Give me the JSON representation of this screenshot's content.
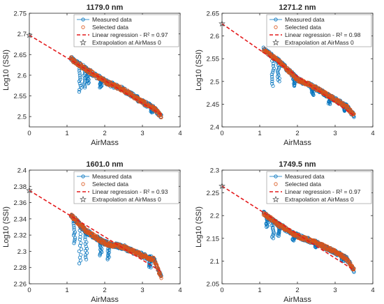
{
  "colors": {
    "measured": "#0072BD",
    "selected": "#D95319",
    "regression": "#E41A1C",
    "extrapolation": "#555555",
    "axis": "#262626"
  },
  "chart_data": [
    {
      "type": "scatter",
      "title": "1179.0 nm",
      "xlabel": "AirMass",
      "ylabel": "Log10 (SSI)",
      "xlim": [
        0,
        4
      ],
      "ylim": [
        2.475,
        2.75
      ],
      "xticks": [
        "0",
        "1",
        "2",
        "3",
        "4"
      ],
      "yticks": [
        "2.5",
        "2.55",
        "2.6",
        "2.65",
        "2.7",
        "2.75"
      ],
      "ytick_values": [
        2.5,
        2.55,
        2.6,
        2.65,
        2.7,
        2.75
      ],
      "legend": [
        {
          "label": "Measured data",
          "marker": "circle"
        },
        {
          "label": "Selected data",
          "marker": "circle"
        },
        {
          "label": "Linear regression - R² = 0.97",
          "marker": "dashed-line"
        },
        {
          "label": "Extrapolation at AirMass 0",
          "marker": "star"
        }
      ],
      "legend_position": "top-right",
      "regression": {
        "x": [
          0,
          3.5
        ],
        "y": [
          2.697,
          2.505
        ]
      },
      "extrapolation": {
        "x": 0,
        "y": 2.697
      },
      "trend": [
        [
          1.1,
          2.64
        ],
        [
          1.5,
          2.615
        ],
        [
          2.0,
          2.585
        ],
        [
          2.5,
          2.565
        ],
        [
          3.0,
          2.535
        ],
        [
          3.3,
          2.52
        ],
        [
          3.5,
          2.5
        ]
      ],
      "dips": [
        [
          1.35,
          2.56
        ],
        [
          1.47,
          2.57
        ],
        [
          1.55,
          2.58
        ],
        [
          1.9,
          2.57
        ],
        [
          2.85,
          2.55
        ],
        [
          3.25,
          2.51
        ]
      ],
      "spread": 0.012
    },
    {
      "type": "scatter",
      "title": "1271.2 nm",
      "xlabel": "AirMass",
      "ylabel": "Log10 (SSI)",
      "xlim": [
        0,
        4
      ],
      "ylim": [
        2.4,
        2.65
      ],
      "xticks": [
        "0",
        "1",
        "2",
        "3",
        "4"
      ],
      "yticks": [
        "2.4",
        "2.45",
        "2.5",
        "2.55",
        "2.6",
        "2.65"
      ],
      "ytick_values": [
        2.4,
        2.45,
        2.5,
        2.55,
        2.6,
        2.65
      ],
      "legend": [
        {
          "label": "Measured data",
          "marker": "circle"
        },
        {
          "label": "Selected data",
          "marker": "circle"
        },
        {
          "label": "Linear regression - R² = 0.98",
          "marker": "dashed-line"
        },
        {
          "label": "Extrapolation at AirMass 0",
          "marker": "star"
        }
      ],
      "legend_position": "top-right",
      "regression": {
        "x": [
          0,
          3.5
        ],
        "y": [
          2.627,
          2.425
        ]
      },
      "extrapolation": {
        "x": 0,
        "y": 2.627
      },
      "trend": [
        [
          1.1,
          2.57
        ],
        [
          1.5,
          2.545
        ],
        [
          2.0,
          2.505
        ],
        [
          2.5,
          2.485
        ],
        [
          3.0,
          2.46
        ],
        [
          3.3,
          2.445
        ],
        [
          3.5,
          2.425
        ]
      ],
      "dips": [
        [
          1.35,
          2.49
        ],
        [
          1.5,
          2.5
        ],
        [
          1.9,
          2.49
        ],
        [
          2.4,
          2.47
        ],
        [
          2.85,
          2.45
        ],
        [
          3.25,
          2.435
        ]
      ],
      "spread": 0.01
    },
    {
      "type": "scatter",
      "title": "1601.0 nm",
      "xlabel": "AirMass",
      "ylabel": "Log10 (SSI)",
      "xlim": [
        0,
        4
      ],
      "ylim": [
        2.26,
        2.4
      ],
      "xticks": [
        "0",
        "1",
        "2",
        "3",
        "4"
      ],
      "yticks": [
        "2.26",
        "2.28",
        "2.3",
        "2.32",
        "2.34",
        "2.36",
        "2.38",
        "2.4"
      ],
      "ytick_values": [
        2.26,
        2.28,
        2.3,
        2.32,
        2.34,
        2.36,
        2.38,
        2.4
      ],
      "legend": [
        {
          "label": "Measured data",
          "marker": "circle"
        },
        {
          "label": "Selected data",
          "marker": "circle"
        },
        {
          "label": "Linear regression - R² = 0.93",
          "marker": "dashed-line"
        },
        {
          "label": "Extrapolation at AirMass 0",
          "marker": "star"
        }
      ],
      "legend_position": "top-right",
      "regression": {
        "x": [
          0,
          3.5
        ],
        "y": [
          2.375,
          2.275
        ]
      },
      "extrapolation": {
        "x": 0,
        "y": 2.375
      },
      "trend": [
        [
          1.1,
          2.345
        ],
        [
          1.5,
          2.325
        ],
        [
          2.0,
          2.31
        ],
        [
          2.5,
          2.305
        ],
        [
          3.0,
          2.295
        ],
        [
          3.3,
          2.29
        ],
        [
          3.5,
          2.268
        ]
      ],
      "dips": [
        [
          1.2,
          2.31
        ],
        [
          1.35,
          2.285
        ],
        [
          1.5,
          2.29
        ],
        [
          1.9,
          2.295
        ],
        [
          2.1,
          2.29
        ],
        [
          3.2,
          2.28
        ]
      ],
      "spread": 0.006
    },
    {
      "type": "scatter",
      "title": "1749.5 nm",
      "xlabel": "AirMass",
      "ylabel": "Log10 (SSI)",
      "xlim": [
        0,
        4
      ],
      "ylim": [
        2.05,
        2.3
      ],
      "xticks": [
        "0",
        "1",
        "2",
        "3",
        "4"
      ],
      "yticks": [
        "2.05",
        "2.1",
        "2.15",
        "2.2",
        "2.25",
        "2.3"
      ],
      "ytick_values": [
        2.05,
        2.1,
        2.15,
        2.2,
        2.25,
        2.3
      ],
      "legend": [
        {
          "label": "Measured data",
          "marker": "circle"
        },
        {
          "label": "Selected data",
          "marker": "circle"
        },
        {
          "label": "Linear regression - R² = 0.97",
          "marker": "dashed-line"
        },
        {
          "label": "Extrapolation at AirMass 0",
          "marker": "star"
        }
      ],
      "legend_position": "top-right",
      "regression": {
        "x": [
          0,
          3.5
        ],
        "y": [
          2.265,
          2.08
        ]
      },
      "extrapolation": {
        "x": 0,
        "y": 2.265
      },
      "trend": [
        [
          1.1,
          2.205
        ],
        [
          1.5,
          2.18
        ],
        [
          2.0,
          2.155
        ],
        [
          2.5,
          2.14
        ],
        [
          3.0,
          2.12
        ],
        [
          3.3,
          2.105
        ],
        [
          3.5,
          2.08
        ]
      ],
      "dips": [
        [
          1.2,
          2.175
        ],
        [
          1.35,
          2.15
        ],
        [
          1.5,
          2.155
        ],
        [
          1.9,
          2.145
        ],
        [
          2.5,
          2.13
        ],
        [
          3.2,
          2.1
        ]
      ],
      "spread": 0.01
    }
  ]
}
